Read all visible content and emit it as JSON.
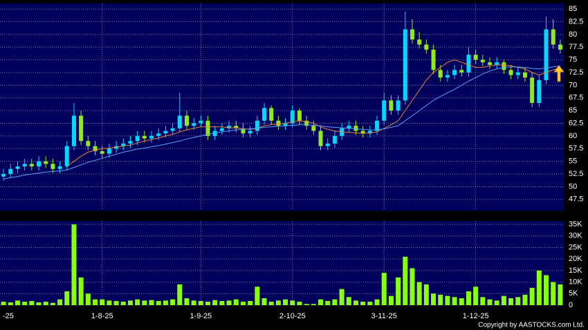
{
  "chart_data": [
    {
      "type": "candlestick",
      "categories": [
        "-25",
        null,
        null,
        null,
        null,
        null,
        null,
        null,
        null,
        null,
        null,
        null,
        null,
        null,
        "1-8-25",
        null,
        null,
        null,
        null,
        null,
        null,
        null,
        null,
        null,
        null,
        null,
        null,
        null,
        "1-9-25",
        null,
        null,
        null,
        null,
        null,
        null,
        null,
        null,
        null,
        null,
        null,
        null,
        "2-10-25",
        null,
        null,
        null,
        null,
        null,
        null,
        null,
        null,
        null,
        null,
        null,
        null,
        "3-11-25",
        null,
        null,
        null,
        null,
        null,
        null,
        null,
        null,
        null,
        null,
        null,
        null,
        "1-12-25",
        null,
        null,
        null,
        null,
        null,
        null,
        null,
        null,
        null,
        null,
        null,
        null
      ],
      "open": [
        52,
        52.5,
        53.5,
        54,
        54.5,
        54,
        55,
        54.5,
        53.5,
        54,
        58,
        64,
        59,
        58,
        57,
        56.5,
        57.5,
        58,
        58.5,
        59,
        60,
        59.5,
        60,
        60.5,
        61,
        61.5,
        64,
        62,
        62.5,
        63,
        60,
        61,
        61.5,
        62,
        61.5,
        60.5,
        61,
        63,
        65.5,
        63,
        62,
        62.5,
        65,
        63,
        62,
        61,
        58,
        58.5,
        60,
        61.5,
        62,
        61,
        60.5,
        61,
        63,
        67,
        65,
        67,
        81,
        79,
        78,
        77,
        73,
        71.5,
        72,
        73,
        72.5,
        76,
        75,
        74.5,
        74,
        74.5,
        73,
        72,
        72.5,
        71.5,
        66.5,
        71,
        81,
        78
      ],
      "high": [
        53.5,
        54.5,
        55,
        55.5,
        55.5,
        56,
        56,
        55.5,
        55,
        59,
        66.5,
        65,
        60,
        59,
        58,
        58.5,
        59,
        59.5,
        60,
        61,
        61,
        61,
        61.5,
        62,
        62.5,
        68.5,
        65,
        63.5,
        64,
        64,
        62,
        62.5,
        63,
        63,
        62.5,
        62,
        64,
        66.5,
        66,
        64,
        63.5,
        66,
        65.5,
        64,
        63,
        62,
        59.5,
        61,
        62.5,
        63,
        63,
        62,
        62,
        64,
        68.5,
        68,
        68,
        84.5,
        83,
        80.5,
        79,
        78,
        74,
        73,
        74,
        74,
        77.5,
        77,
        76,
        75.5,
        75.5,
        75,
        74,
        73.5,
        73.5,
        72.5,
        72,
        83.5,
        83,
        79
      ],
      "low": [
        51.2,
        51.7,
        52.7,
        53.2,
        53.2,
        53.2,
        53.7,
        52.7,
        52.7,
        53.2,
        57.2,
        58.2,
        57.2,
        56.2,
        55.7,
        55.7,
        56.7,
        57.2,
        57.7,
        58.2,
        58.7,
        58.7,
        59.2,
        59.7,
        60.2,
        60.7,
        61.2,
        61.2,
        61.7,
        59.2,
        59.2,
        60.2,
        60.7,
        60.7,
        59.7,
        59.7,
        60.2,
        62.2,
        62.2,
        61.2,
        61.2,
        61.7,
        62.2,
        61.2,
        60.2,
        57.2,
        57.2,
        57.7,
        59.2,
        60.7,
        60.2,
        59.7,
        59.7,
        60.2,
        62.2,
        64.2,
        64.2,
        66.2,
        78.2,
        77.2,
        76.2,
        72.2,
        70.7,
        70.7,
        71.2,
        71.7,
        71.7,
        74.2,
        73.7,
        73.2,
        73.2,
        72.2,
        71.2,
        71.2,
        70.7,
        65.7,
        65.7,
        70.2,
        77.2,
        76.2
      ],
      "close": [
        52.5,
        53.5,
        54,
        54.5,
        54,
        55,
        54.5,
        53.5,
        54,
        58,
        64,
        59,
        58,
        57,
        56.5,
        57.5,
        58,
        58.5,
        59,
        60,
        59.5,
        60,
        60.5,
        61,
        61.5,
        64,
        62,
        62.5,
        63,
        60,
        61,
        61.5,
        62,
        61.5,
        60.5,
        61,
        63,
        65.5,
        63,
        62,
        62.5,
        65,
        63,
        62,
        61,
        58,
        58.5,
        60,
        61.5,
        62,
        61,
        60.5,
        61,
        63,
        67,
        65,
        67,
        81,
        79,
        78,
        77,
        73,
        71.5,
        72,
        73,
        72.5,
        76,
        75,
        74.5,
        74,
        74.5,
        73,
        72,
        72.5,
        71.5,
        66.5,
        71,
        81,
        78,
        77
      ],
      "lines": [
        {
          "color": "#e8823a",
          "values": [
            null,
            null,
            null,
            null,
            null,
            null,
            null,
            null,
            null,
            54,
            55,
            56,
            56.8,
            57.2,
            57.5,
            57.6,
            57.8,
            58,
            58.2,
            58.6,
            59,
            59.3,
            59.6,
            60,
            60.3,
            60.8,
            61.2,
            61.5,
            61.8,
            61.8,
            61.8,
            61.8,
            61.6,
            61.6,
            61.4,
            61.3,
            61.5,
            62,
            62.2,
            62.3,
            62.5,
            62.8,
            63,
            62.8,
            62.5,
            61.8,
            61.3,
            61,
            60.8,
            60.7,
            60.6,
            60.5,
            60.6,
            60.8,
            61.5,
            62.2,
            63,
            65,
            67,
            69,
            71,
            72.5,
            73.5,
            74.5,
            75,
            74.5,
            74,
            73.5,
            73.5,
            73.8,
            74,
            74,
            73.8,
            73.5,
            73.2,
            72.5,
            72,
            72.5,
            73,
            73.5
          ]
        },
        {
          "color": "#5aa0ff",
          "values": [
            51.5,
            51.8,
            52,
            52.3,
            52.5,
            52.7,
            52.9,
            53,
            53.1,
            53.3,
            53.8,
            54.3,
            54.8,
            55.2,
            55.6,
            56,
            56.4,
            56.8,
            57.1,
            57.4,
            57.6,
            57.9,
            58.1,
            58.4,
            58.7,
            59,
            59.4,
            59.7,
            60,
            60.3,
            60.6,
            60.8,
            61,
            61.2,
            61.3,
            61.4,
            61.5,
            61.7,
            61.8,
            61.9,
            62,
            62.1,
            62.2,
            62.2,
            62.1,
            62,
            61.8,
            61.7,
            61.6,
            61.5,
            61.4,
            61.3,
            61.2,
            61.2,
            61.4,
            61.7,
            62,
            63,
            64,
            65,
            66,
            67,
            67.8,
            68.5,
            69.2,
            70,
            70.8,
            71.5,
            72.2,
            72.8,
            73.2,
            73.5,
            73.6,
            73.6,
            73.5,
            73.3,
            73.2,
            73.4,
            73.6,
            73.8
          ]
        }
      ],
      "up_color": "#00d8ff",
      "down_color": "#8fe820",
      "ylim": [
        45.3,
        86.1
      ],
      "yticks": [
        47.5,
        50,
        52.5,
        55,
        57.5,
        60,
        62.5,
        65,
        67.5,
        70,
        72.5,
        75,
        77.5,
        80,
        82.5,
        85
      ],
      "grid": true
    },
    {
      "type": "bar",
      "values": [
        1500,
        1200,
        2000,
        1500,
        1800,
        1200,
        1500,
        1000,
        2500,
        6000,
        35000,
        12000,
        5000,
        2500,
        2500,
        2000,
        1800,
        1500,
        2000,
        2500,
        2000,
        2200,
        1800,
        2000,
        2500,
        9000,
        3000,
        2000,
        1800,
        1500,
        2200,
        1800,
        2000,
        2500,
        1500,
        1800,
        8000,
        3000,
        1500,
        2000,
        2500,
        2000,
        1500,
        500,
        500,
        2500,
        1800,
        2500,
        7000,
        3500,
        2000,
        1500,
        1500,
        2500,
        14000,
        4000,
        12000,
        21000,
        16000,
        10000,
        9000,
        5000,
        4500,
        4000,
        3500,
        3000,
        6000,
        8000,
        3500,
        2500,
        2000,
        4000,
        3000,
        3500,
        4500,
        7500,
        15000,
        13000,
        10000,
        9000
      ],
      "color": "#88ff11",
      "ylim": [
        0,
        36500
      ],
      "yticks": [
        0,
        {
          "value": 5000,
          "label": "5K"
        },
        {
          "value": 10000,
          "label": "10K"
        },
        {
          "value": 15000,
          "label": "15K"
        },
        {
          "value": 20000,
          "label": "20K"
        },
        {
          "value": 25000,
          "label": "25K"
        },
        {
          "value": 30000,
          "label": "30K"
        },
        {
          "value": 35000,
          "label": "35K"
        }
      ],
      "grid": true
    }
  ],
  "copyright": "Copyright by AASTOCKS.com Ltd."
}
